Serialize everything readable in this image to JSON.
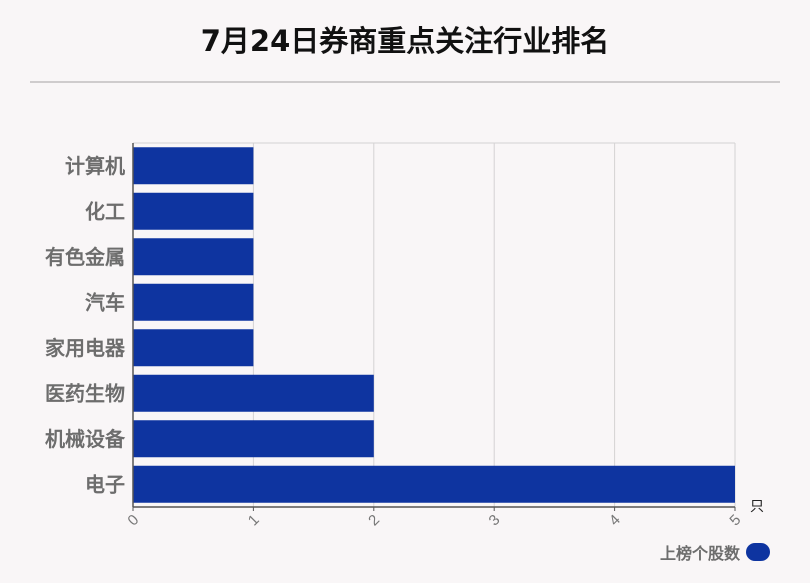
{
  "chart_data": {
    "type": "bar",
    "orientation": "horizontal",
    "title": "7月24日券商重点关注行业排名",
    "categories": [
      "计算机",
      "化工",
      "有色金属",
      "汽车",
      "家用电器",
      "医药生物",
      "机械设备",
      "电子"
    ],
    "series": [
      {
        "name": "上榜个股数",
        "values": [
          1,
          1,
          1,
          1,
          1,
          2,
          2,
          5
        ],
        "color": "#0e34a0"
      }
    ],
    "xlim": [
      0,
      5
    ],
    "xticks": [
      "0",
      "1",
      "2",
      "3",
      "4",
      "5"
    ],
    "xunit": "只",
    "grid": true,
    "legend_position": "bottom-right"
  }
}
